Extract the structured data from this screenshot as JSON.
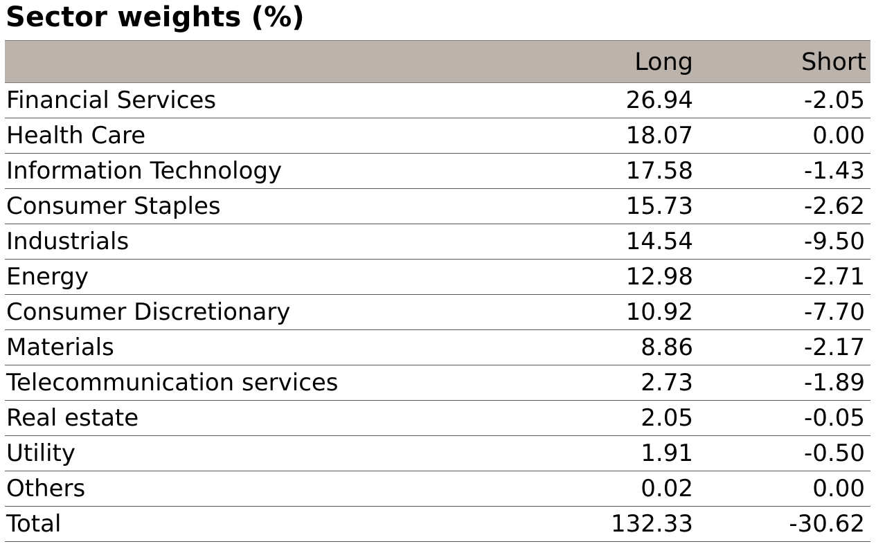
{
  "title": "Sector weights (%)",
  "chart_data": {
    "type": "table",
    "title": "Sector weights (%)",
    "columns": [
      "",
      "Long",
      "Short"
    ],
    "rows": [
      {
        "sector": "Financial Services",
        "long": "26.94",
        "short": "-2.05"
      },
      {
        "sector": "Health Care",
        "long": "18.07",
        "short": "0.00"
      },
      {
        "sector": "Information Technology",
        "long": "17.58",
        "short": "-1.43"
      },
      {
        "sector": "Consumer Staples",
        "long": "15.73",
        "short": "-2.62"
      },
      {
        "sector": "Industrials",
        "long": "14.54",
        "short": "-9.50"
      },
      {
        "sector": "Energy",
        "long": "12.98",
        "short": "-2.71"
      },
      {
        "sector": "Consumer Discretionary",
        "long": "10.92",
        "short": "-7.70"
      },
      {
        "sector": "Materials",
        "long": "8.86",
        "short": "-2.17"
      },
      {
        "sector": "Telecommunication services",
        "long": "2.73",
        "short": "-1.89"
      },
      {
        "sector": "Real estate",
        "long": "2.05",
        "short": "-0.05"
      },
      {
        "sector": "Utility",
        "long": "1.91",
        "short": "-0.50"
      },
      {
        "sector": "Others",
        "long": "0.02",
        "short": "0.00"
      },
      {
        "sector": "Total",
        "long": "132.33",
        "short": "-30.62"
      }
    ]
  },
  "colors": {
    "header_background": "#bcb4ac",
    "row_divider": "#555555",
    "text": "#000000"
  }
}
